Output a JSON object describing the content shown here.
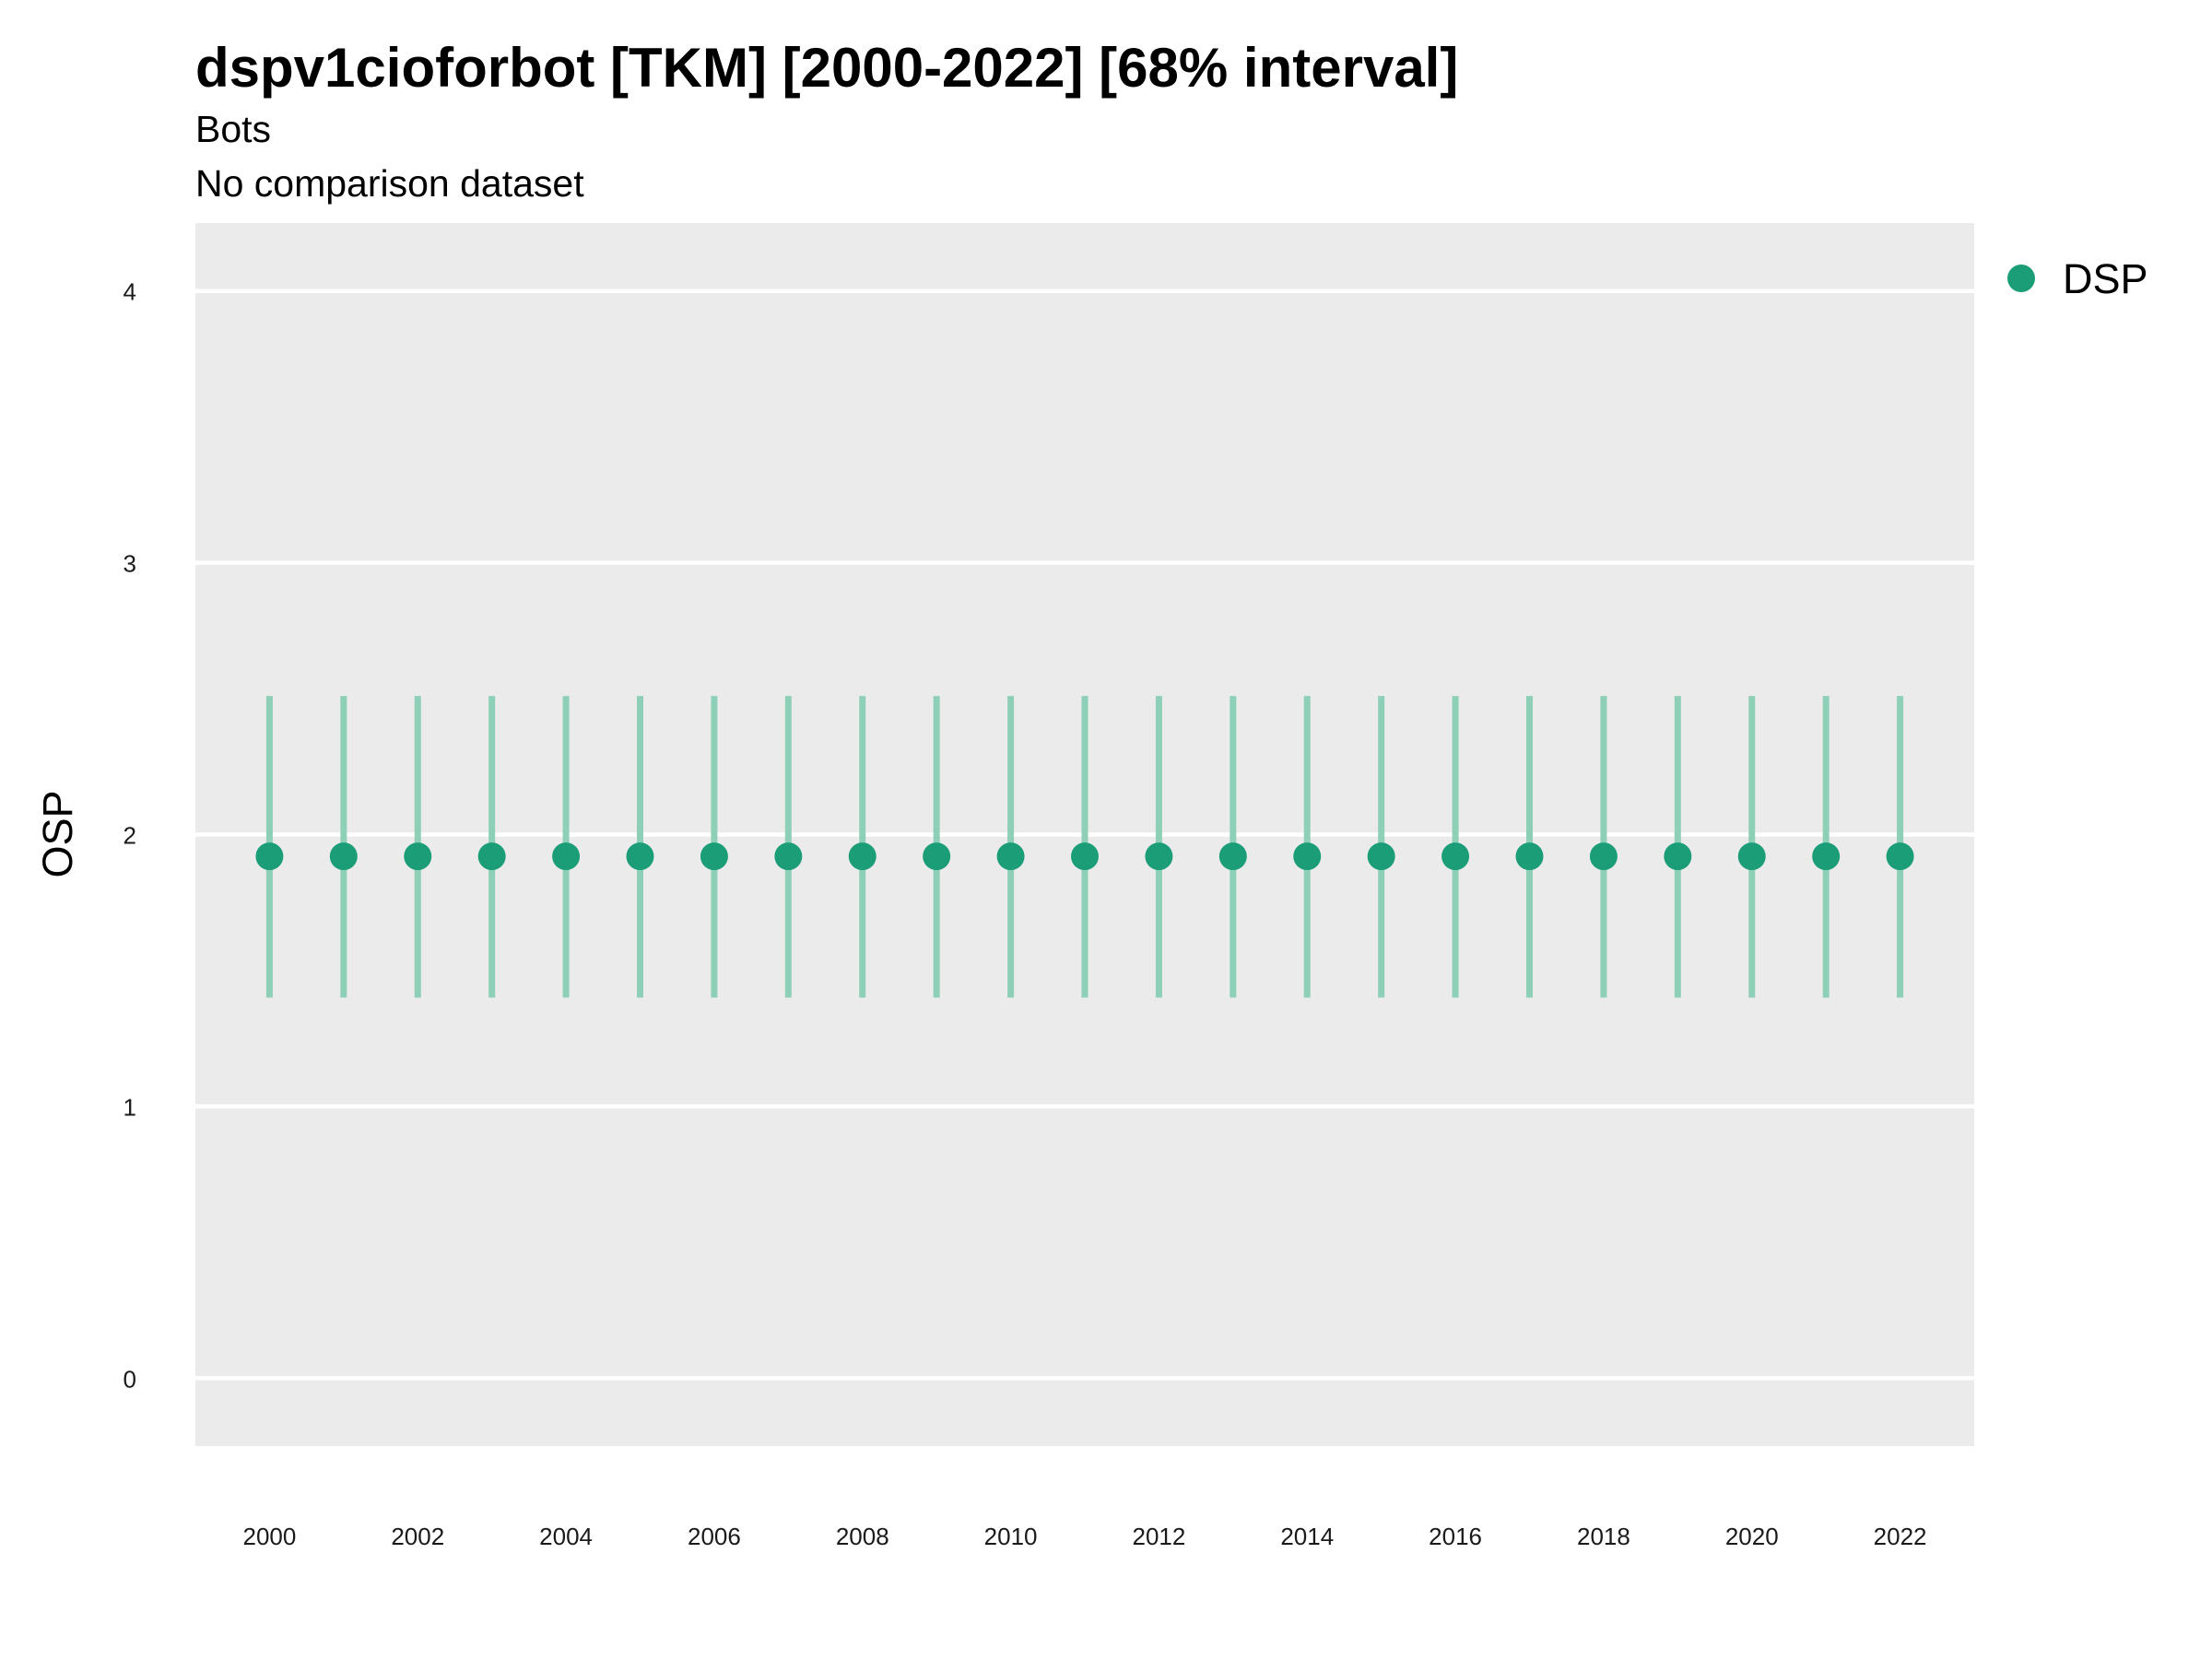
{
  "chart_data": {
    "type": "scatter",
    "title": "dspv1cioforbot [TKM] [2000-2022] [68% interval]",
    "subtitle": "Bots",
    "caption_line": "No comparison dataset",
    "xlabel": "",
    "ylabel": "OSP",
    "x_ticks": [
      "2000",
      "2002",
      "2004",
      "2006",
      "2008",
      "2010",
      "2012",
      "2014",
      "2016",
      "2018",
      "2020",
      "2022"
    ],
    "y_ticks": [
      "0",
      "1",
      "2",
      "3",
      "4"
    ],
    "xlim": [
      1999,
      2023
    ],
    "ylim": [
      -0.25,
      4.25
    ],
    "grid": true,
    "legend_position": "right",
    "series": [
      {
        "name": "DSP",
        "color": "#1B9E77",
        "x": [
          2000,
          2001,
          2002,
          2003,
          2004,
          2005,
          2006,
          2007,
          2008,
          2009,
          2010,
          2011,
          2012,
          2013,
          2014,
          2015,
          2016,
          2017,
          2018,
          2019,
          2020,
          2021,
          2022
        ],
        "y": [
          1.92,
          1.92,
          1.92,
          1.92,
          1.92,
          1.92,
          1.92,
          1.92,
          1.92,
          1.92,
          1.92,
          1.92,
          1.92,
          1.92,
          1.92,
          1.92,
          1.92,
          1.92,
          1.92,
          1.92,
          1.92,
          1.92,
          1.92
        ],
        "lower": [
          1.4,
          1.4,
          1.4,
          1.4,
          1.4,
          1.4,
          1.4,
          1.4,
          1.4,
          1.4,
          1.4,
          1.4,
          1.4,
          1.4,
          1.4,
          1.4,
          1.4,
          1.4,
          1.4,
          1.4,
          1.4,
          1.4,
          1.4
        ],
        "upper": [
          2.51,
          2.51,
          2.51,
          2.51,
          2.51,
          2.51,
          2.51,
          2.51,
          2.51,
          2.51,
          2.51,
          2.51,
          2.51,
          2.51,
          2.51,
          2.51,
          2.51,
          2.51,
          2.51,
          2.51,
          2.51,
          2.51,
          2.51
        ]
      }
    ]
  },
  "colors": {
    "panel_background": "#EBEBEB",
    "gridline": "#FFFFFF",
    "series_point": "#1B9E77",
    "series_interval": "#8ED0B7"
  }
}
